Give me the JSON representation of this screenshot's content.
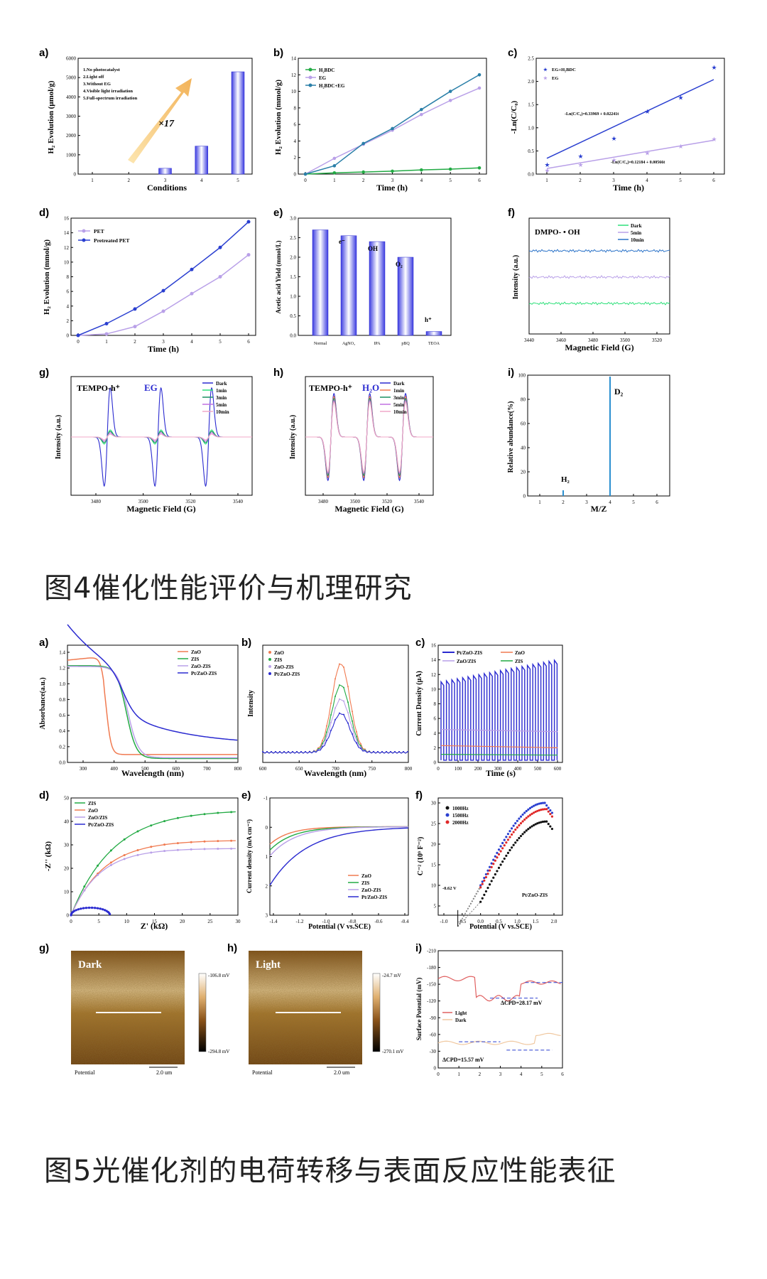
{
  "captions": {
    "fig4": "图4催化性能评价与机理研究",
    "fig5": "图5光催化剂的电荷转移与表面反应性能表征"
  },
  "fig4": {
    "a": {
      "label": "a)",
      "ylabel": "H₂ Evolution (μmol/g)",
      "xlabel": "Conditions",
      "annot": "×17",
      "legend": [
        "1.No photocatalyst",
        "2.Light off",
        "3.Without EG",
        "4.Visible light irradiation",
        "5.Full-spectrum irradiation"
      ],
      "yticks": [
        "0",
        "1000",
        "2000",
        "3000",
        "4000",
        "5000",
        "6000"
      ],
      "xticks": [
        "1",
        "2",
        "3",
        "4",
        "5"
      ]
    },
    "b": {
      "label": "b)",
      "ylabel": "H₂ Evolution (mmol/g)",
      "xlabel": "Time (h)",
      "legend": [
        "H₂BDC",
        "EG",
        "H₂BDC+EG"
      ],
      "yticks": [
        "0",
        "2",
        "4",
        "6",
        "8",
        "10",
        "12",
        "14"
      ],
      "xticks": [
        "0",
        "1",
        "2",
        "3",
        "4",
        "5",
        "6"
      ]
    },
    "c": {
      "label": "c)",
      "ylabel": "-Ln(C/C₀)",
      "xlabel": "Time (h)",
      "legend": [
        "EG+H₂BDC",
        "EG"
      ],
      "eq1": "-Ln(C/C₀)=0.33969 + 0.02241t",
      "eq2": "-Ln(C/C₀)=0.12184 + 0.00566t",
      "yticks": [
        "0.0",
        "0.5",
        "1.0",
        "1.5",
        "2.0",
        "2.5"
      ],
      "xticks": [
        "1",
        "2",
        "3",
        "4",
        "5",
        "6"
      ]
    },
    "d": {
      "label": "d)",
      "ylabel": "H₂ Evolution (mmol/g)",
      "xlabel": "Time (h)",
      "legend": [
        "PET",
        "Pretreated PET"
      ],
      "yticks": [
        "0",
        "2",
        "4",
        "6",
        "8",
        "10",
        "12",
        "14",
        "16"
      ],
      "xticks": [
        "0",
        "1",
        "2",
        "3",
        "4",
        "5",
        "6"
      ]
    },
    "e": {
      "label": "e)",
      "ylabel": "Acetic acid Yield (mmol/L)",
      "categories": [
        "Normal",
        "AgNO₃",
        "IPA",
        "pBQ",
        "TEOA"
      ],
      "annots": [
        "e⁻",
        "OH",
        "O₂",
        "h⁺"
      ],
      "yticks": [
        "0.0",
        "0.5",
        "1.0",
        "1.5",
        "2.0",
        "2.5",
        "3.0"
      ]
    },
    "f": {
      "label": "f)",
      "title": "DMPO- • OH",
      "ylabel": "Intensity (a.u.)",
      "xlabel": "Magnetic Field (G)",
      "legend": [
        "Dark",
        "5min",
        "10min"
      ],
      "xticks": [
        "3440",
        "3460",
        "3480",
        "3500",
        "3520"
      ]
    },
    "g": {
      "label": "g)",
      "title": "TEMPO-h⁺",
      "title2": "EG",
      "ylabel": "Intensity (a.u.)",
      "xlabel": "Magnetic Field (G)",
      "legend": [
        "Dark",
        "1min",
        "3min",
        "5min",
        "10min"
      ],
      "xticks": [
        "3480",
        "3500",
        "3520",
        "3540"
      ]
    },
    "h": {
      "label": "h)",
      "title": "TEMPO-h⁺",
      "title2": "H₂O",
      "ylabel": "Intensity (a.u.)",
      "xlabel": "Magnetic Field (G)",
      "legend": [
        "Dark",
        "1min",
        "3min",
        "5min",
        "10min"
      ],
      "xticks": [
        "3480",
        "3500",
        "3520",
        "3540"
      ]
    },
    "i": {
      "label": "i)",
      "ylabel": "Relative abundance(%)",
      "xlabel": "M/Z",
      "annots": [
        "H₂",
        "D₂"
      ],
      "yticks": [
        "0",
        "20",
        "40",
        "60",
        "80",
        "100"
      ],
      "xticks": [
        "1",
        "2",
        "3",
        "4",
        "5",
        "6"
      ]
    }
  },
  "fig5": {
    "a": {
      "label": "a)",
      "ylabel": "Absorbance(a.u.)",
      "xlabel": "Wavelength (nm)",
      "legend": [
        "ZnO",
        "ZIS",
        "ZnO-ZIS",
        "Pt/ZnO-ZIS"
      ],
      "yticks": [
        "0.0",
        "0.2",
        "0.4",
        "0.6",
        "0.8",
        "1.0",
        "1.2",
        "1.4"
      ],
      "xticks": [
        "300",
        "400",
        "500",
        "600",
        "700",
        "800"
      ]
    },
    "b": {
      "label": "b)",
      "ylabel": "Intensity",
      "xlabel": "Wavelength (nm)",
      "legend": [
        "ZnO",
        "ZIS",
        "ZnO-ZIS",
        "Pt/ZnO-ZIS"
      ],
      "xticks": [
        "600",
        "650",
        "700",
        "750",
        "800"
      ]
    },
    "c": {
      "label": "c)",
      "ylabel": "Current Density (μA)",
      "xlabel": "Time (s)",
      "legend": [
        "Pt/ZnO-ZIS",
        "ZnO",
        "ZnO/ZIS",
        "ZIS"
      ],
      "yticks": [
        "0",
        "2",
        "4",
        "6",
        "8",
        "10",
        "12",
        "14",
        "16"
      ],
      "xticks": [
        "0",
        "100",
        "200",
        "300",
        "400",
        "500",
        "600"
      ]
    },
    "d": {
      "label": "d)",
      "ylabel": "-Z'' (kΩ)",
      "xlabel": "Z' (kΩ)",
      "legend": [
        "ZIS",
        "ZnO",
        "ZnO/ZIS",
        "Pt/ZnO-ZIS"
      ],
      "yticks": [
        "0",
        "10",
        "20",
        "30",
        "40",
        "50"
      ],
      "xticks": [
        "0",
        "5",
        "10",
        "15",
        "20",
        "25",
        "30"
      ]
    },
    "e": {
      "label": "e)",
      "ylabel": "Current density (mA cm⁻²)",
      "xlabel": "Potential (V vs.SCE)",
      "legend": [
        "ZnO",
        "ZIS",
        "ZnO-ZIS",
        "Pt/ZnO-ZIS"
      ],
      "yticks": [
        "-1",
        "0",
        "1",
        "2",
        "3"
      ],
      "xticks": [
        "-1.4",
        "-1.2",
        "-1.0",
        "-0.8",
        "-0.6",
        "-0.4"
      ]
    },
    "f": {
      "label": "f)",
      "ylabel": "C⁻² (10⁹ F⁻²)",
      "xlabel": "Potential (V vs.SCE)",
      "legend": [
        "1000Hz",
        "1500Hz",
        "2000Hz"
      ],
      "annot": "-0.62 V",
      "sample": "Pt/ZnO-ZIS",
      "yticks": [
        "5",
        "10",
        "15",
        "20",
        "25",
        "30"
      ],
      "xticks": [
        "-1.0",
        "-0.5",
        "0.0",
        "0.5",
        "1.0",
        "1.5",
        "2.0"
      ]
    },
    "g": {
      "label": "g)",
      "title": "Dark",
      "scale_top": "-106.8 mV",
      "scale_bottom": "-294.8 mV",
      "footer_left": "Potential",
      "footer_right": "2.0 um"
    },
    "h": {
      "label": "h)",
      "title": "Light",
      "scale_top": "-24.7 mV",
      "scale_bottom": "-270.1 mV",
      "footer_left": "Potential",
      "footer_right": "2.0 um"
    },
    "i": {
      "label": "i)",
      "ylabel": "Surface Potential (mV)",
      "legend": [
        "Light",
        "Dark"
      ],
      "annot1": "ΔCPD=28.17 mV",
      "annot2": "ΔCPD=15.57 mV",
      "yticks": [
        "0",
        "-30",
        "-60",
        "-90",
        "-120",
        "-150",
        "-180",
        "-210"
      ],
      "xticks": [
        "0",
        "1",
        "2",
        "3",
        "4",
        "5",
        "6"
      ]
    }
  },
  "chart_data": [
    {
      "panel": "fig4-a",
      "type": "bar",
      "xlabel": "Conditions",
      "ylabel": "H₂ Evolution (μmol/g)",
      "categories": [
        "1",
        "2",
        "3",
        "4",
        "5"
      ],
      "values": [
        0,
        0,
        300,
        1450,
        5300
      ],
      "ylim": [
        0,
        6000
      ]
    },
    {
      "panel": "fig4-b",
      "type": "line",
      "xlabel": "Time (h)",
      "ylabel": "H₂ Evolution (mmol/g)",
      "x": [
        0,
        1,
        2,
        3,
        4,
        5,
        6
      ],
      "ylim": [
        0,
        14
      ],
      "series": [
        {
          "name": "H₂BDC",
          "color": "#22aa44",
          "values": [
            0,
            0.15,
            0.25,
            0.35,
            0.5,
            0.6,
            0.75
          ]
        },
        {
          "name": "EG",
          "color": "#b9a0e8",
          "values": [
            0,
            1.9,
            3.6,
            5.3,
            7.2,
            8.9,
            10.4
          ]
        },
        {
          "name": "H₂BDC+EG",
          "color": "#2a7fa8",
          "values": [
            0,
            1.0,
            3.7,
            5.5,
            7.8,
            10.0,
            12.0
          ]
        }
      ]
    },
    {
      "panel": "fig4-c",
      "type": "scatter",
      "xlabel": "Time (h)",
      "ylabel": "-Ln(C/C₀)",
      "x": [
        1,
        2,
        3,
        4,
        5,
        6
      ],
      "ylim": [
        0,
        2.5
      ],
      "series": [
        {
          "name": "EG+H₂BDC",
          "color": "#2a3fd0",
          "values": [
            0.2,
            0.38,
            0.77,
            1.35,
            1.65,
            2.3
          ]
        },
        {
          "name": "EG",
          "color": "#b9a0e8",
          "values": [
            0.08,
            0.2,
            0.3,
            0.45,
            0.6,
            0.75
          ]
        }
      ]
    },
    {
      "panel": "fig4-d",
      "type": "line",
      "xlabel": "Time (h)",
      "ylabel": "H₂ Evolution (mmol/g)",
      "x": [
        0,
        1,
        2,
        3,
        4,
        5,
        6
      ],
      "ylim": [
        0,
        16
      ],
      "series": [
        {
          "name": "PET",
          "color": "#b9a0e8",
          "values": [
            0,
            0.2,
            1.2,
            3.3,
            5.7,
            8.0,
            11.0
          ]
        },
        {
          "name": "Pretreated PET",
          "color": "#2a3fd0",
          "values": [
            0,
            1.6,
            3.6,
            6.1,
            9.0,
            12.0,
            15.5
          ]
        }
      ]
    },
    {
      "panel": "fig4-e",
      "type": "bar",
      "ylabel": "Acetic acid Yield (mmol/L)",
      "categories": [
        "Normal",
        "AgNO₃",
        "IPA",
        "pBQ",
        "TEOA"
      ],
      "values": [
        2.7,
        2.55,
        2.4,
        2.0,
        0.1
      ],
      "ylim": [
        0,
        3.0
      ]
    },
    {
      "panel": "fig5-a",
      "type": "line",
      "xlabel": "Wavelength (nm)",
      "ylabel": "Absorbance(a.u.)",
      "ylim": [
        0,
        1.4
      ],
      "xlim": [
        250,
        800
      ],
      "series": [
        {
          "name": "ZnO",
          "color": "#f07a50"
        },
        {
          "name": "ZIS",
          "color": "#22aa44"
        },
        {
          "name": "ZnO-ZIS",
          "color": "#b9a0e8"
        },
        {
          "name": "Pt/ZnO-ZIS",
          "color": "#2a2ad0"
        }
      ]
    },
    {
      "panel": "fig5-d",
      "type": "scatter",
      "xlabel": "Z' (kΩ)",
      "ylabel": "-Z'' (kΩ)",
      "xlim": [
        0,
        30
      ],
      "ylim": [
        0,
        50
      ],
      "series": [
        {
          "name": "ZIS",
          "color": "#22aa44"
        },
        {
          "name": "ZnO",
          "color": "#f07a50"
        },
        {
          "name": "ZnO/ZIS",
          "color": "#b9a0e8"
        },
        {
          "name": "Pt/ZnO-ZIS",
          "color": "#2a2ad0"
        }
      ]
    }
  ]
}
